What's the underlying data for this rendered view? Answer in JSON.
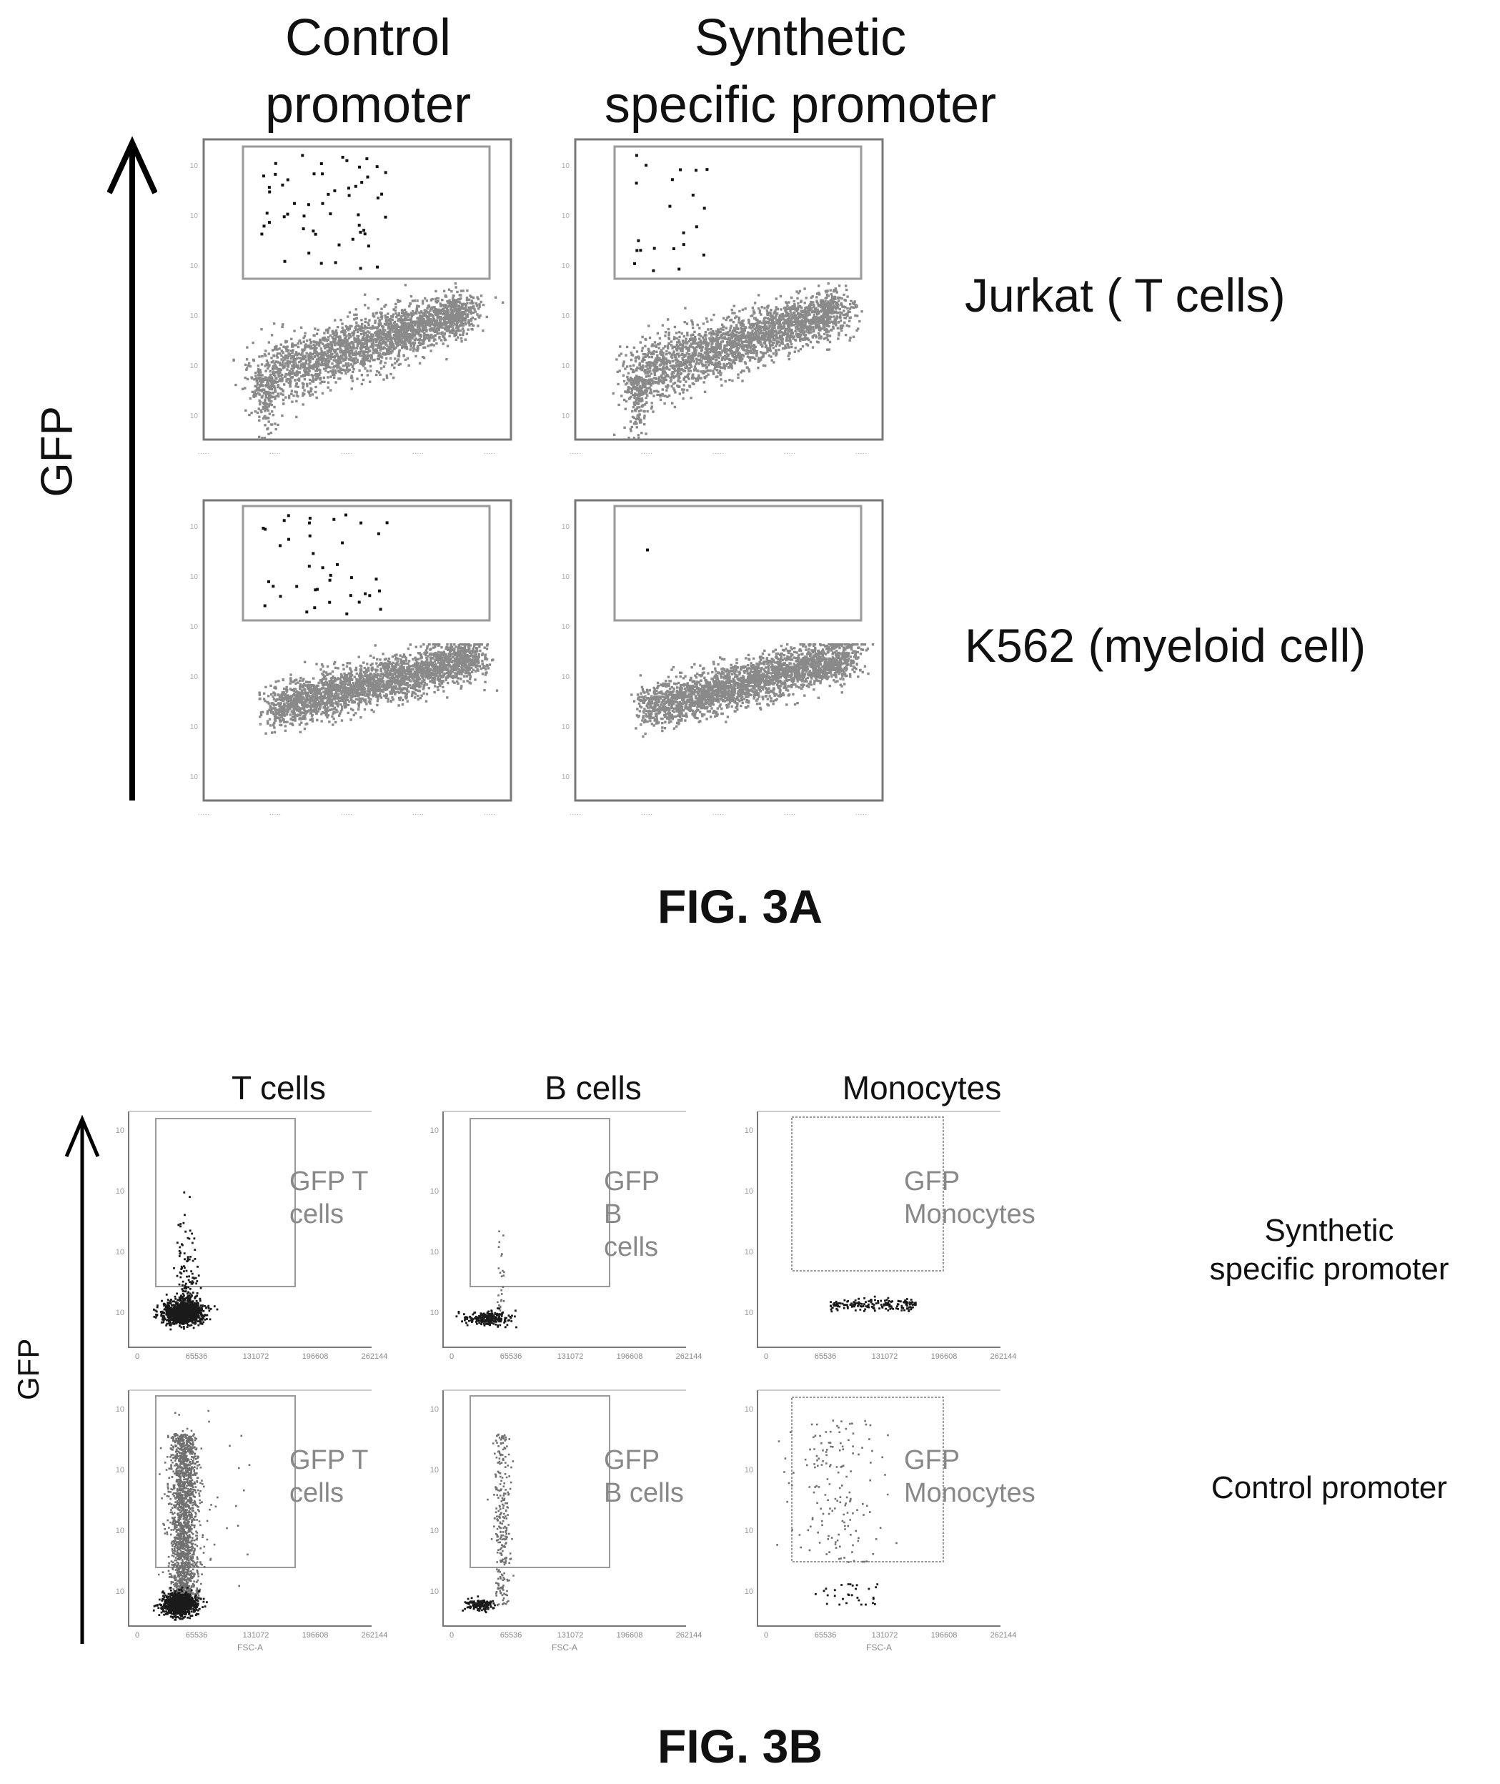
{
  "colors": {
    "dots_a": "#8a8a8a",
    "dots_b_dark": "#1a1a1a",
    "dots_b_gray": "#707070",
    "gate": "#9a9a9a",
    "frame": "#777777",
    "text": "#111111"
  },
  "fig_a": {
    "columns": [
      "Control\npromoter",
      "Synthetic\nspecific promoter"
    ],
    "y_axis_label": "GFP",
    "rows": [
      "Jurkat ( T cells)",
      "K562 (myeloid cell)"
    ],
    "caption": "FIG. 3A"
  },
  "fig_b": {
    "columns": [
      "T cells",
      "B cells",
      "Monocytes"
    ],
    "y_axis_label": "GFP",
    "rows": [
      "Synthetic\nspecific promoter",
      "Control promoter"
    ],
    "caption": "FIG. 3B",
    "x_axis_label": "FSC-A",
    "x_ticks": [
      "0",
      "65536",
      "131072",
      "196608",
      "262144"
    ],
    "gates": [
      [
        "GFP T\ncells",
        "GFP\nB\ncells",
        "GFP\nMonocytes"
      ],
      [
        "GFP T\ncells",
        "GFP\nB cells",
        "GFP\nMonocytes"
      ]
    ]
  },
  "chart_data": [
    {
      "type": "scatter",
      "title": "FIG. 3A",
      "xlabel": "FSC-A",
      "ylabel": "GFP",
      "xlim": [
        0,
        262144
      ],
      "y_scale": "log",
      "panels": [
        {
          "row": "Jurkat ( T cells)",
          "column": "Control\npromoter",
          "gfp_positive_gate": true,
          "positive_events": "many"
        },
        {
          "row": "Jurkat ( T cells)",
          "column": "Synthetic\nspecific promoter",
          "gfp_positive_gate": true,
          "positive_events": "some"
        },
        {
          "row": "K562 (myeloid cell)",
          "column": "Control\npromoter",
          "gfp_positive_gate": true,
          "positive_events": "many"
        },
        {
          "row": "K562 (myeloid cell)",
          "column": "Synthetic\nspecific promoter",
          "gfp_positive_gate": true,
          "positive_events": "none"
        }
      ]
    },
    {
      "type": "scatter",
      "title": "FIG. 3B",
      "xlabel": "FSC-A",
      "ylabel": "GFP",
      "x_ticks": [
        0,
        65536,
        131072,
        196608,
        262144
      ],
      "xlim": [
        0,
        262144
      ],
      "y_scale": "log",
      "panels": [
        {
          "row": "Synthetic\nspecific promoter",
          "column": "T cells",
          "gate": "GFP T\ncells"
        },
        {
          "row": "Synthetic\nspecific promoter",
          "column": "B cells",
          "gate": "GFP\nB\ncells"
        },
        {
          "row": "Synthetic\nspecific promoter",
          "column": "Monocytes",
          "gate": "GFP\nMonocytes"
        },
        {
          "row": "Control promoter",
          "column": "T cells",
          "gate": "GFP T\ncells"
        },
        {
          "row": "Control promoter",
          "column": "B cells",
          "gate": "GFP\nB cells"
        },
        {
          "row": "Control promoter",
          "column": "Monocytes",
          "gate": "GFP\nMonocytes"
        }
      ]
    }
  ]
}
